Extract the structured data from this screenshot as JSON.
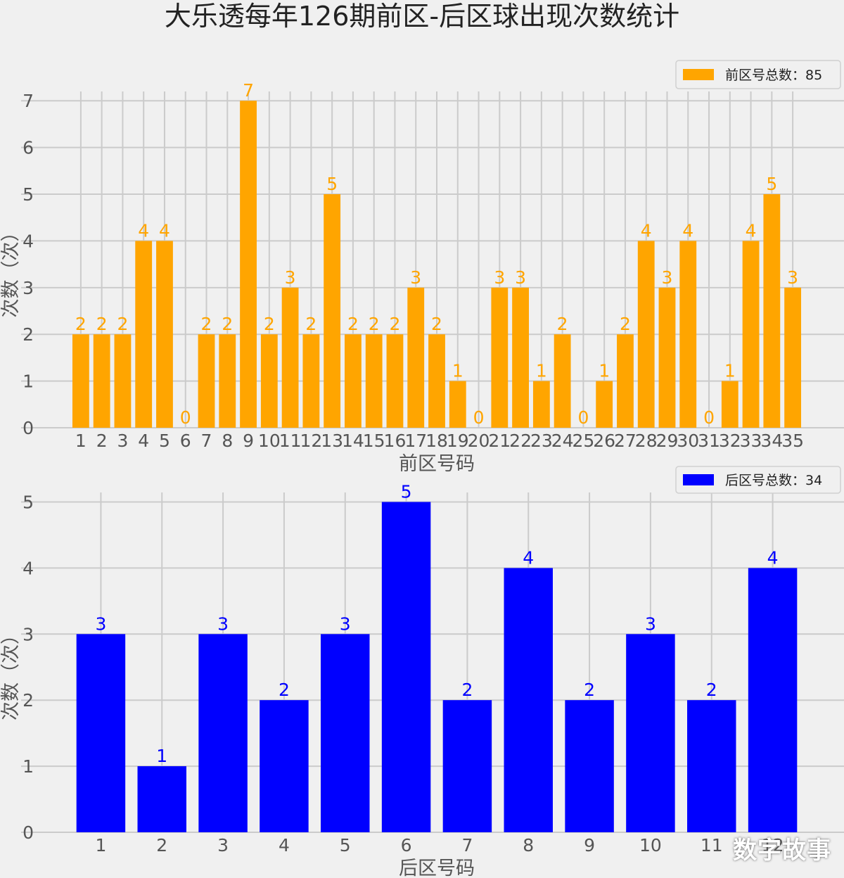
{
  "title": "大乐透每年126期前区-后区球出现次数统计",
  "watermark": "数字故事",
  "chart_data": [
    {
      "type": "bar",
      "categories": [
        "1",
        "2",
        "3",
        "4",
        "5",
        "6",
        "7",
        "8",
        "9",
        "10",
        "11",
        "12",
        "13",
        "14",
        "15",
        "16",
        "17",
        "18",
        "19",
        "20",
        "21",
        "22",
        "23",
        "24",
        "25",
        "26",
        "27",
        "28",
        "29",
        "30",
        "31",
        "32",
        "33",
        "34",
        "35"
      ],
      "series": [
        {
          "name": "前区号总数：85",
          "color": "#ffa500",
          "values": [
            2,
            2,
            2,
            4,
            4,
            0,
            2,
            2,
            7,
            2,
            3,
            2,
            5,
            2,
            2,
            2,
            3,
            2,
            1,
            0,
            3,
            3,
            1,
            2,
            0,
            1,
            2,
            4,
            3,
            4,
            0,
            1,
            4,
            5,
            3
          ]
        }
      ],
      "xlabel": "前区号码",
      "ylabel": "次数（次）",
      "yticks": [
        0,
        1,
        2,
        3,
        4,
        5,
        6,
        7
      ],
      "ylim": [
        0,
        7.35
      ],
      "grid": true,
      "legend": "top-right"
    },
    {
      "type": "bar",
      "categories": [
        "1",
        "2",
        "3",
        "4",
        "5",
        "6",
        "7",
        "8",
        "9",
        "10",
        "11",
        "12"
      ],
      "series": [
        {
          "name": "后区号总数：34",
          "color": "#0000ff",
          "values": [
            3,
            1,
            3,
            2,
            3,
            5,
            2,
            4,
            2,
            3,
            2,
            4
          ]
        }
      ],
      "xlabel": "后区号码",
      "ylabel": "次数（次）",
      "yticks": [
        0,
        1,
        2,
        3,
        4,
        5
      ],
      "ylim": [
        0,
        5.25
      ],
      "grid": true,
      "legend": "top-right"
    }
  ]
}
